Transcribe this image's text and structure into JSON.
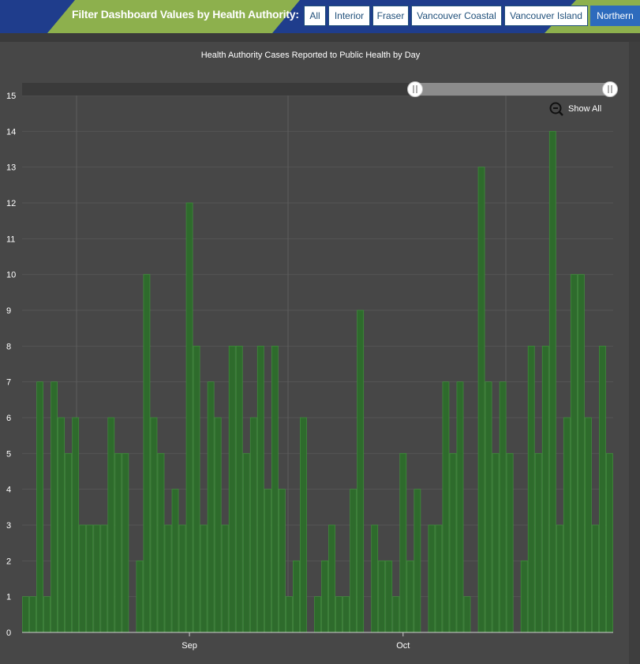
{
  "header": {
    "filter_label": "Filter Dashboard Values by Health Authority:",
    "buttons": [
      "All",
      "Interior",
      "Fraser",
      "Vancouver Coastal",
      "Vancouver Island",
      "Northern"
    ],
    "active_button": "Northern"
  },
  "chart_controls": {
    "show_all_label": "Show All"
  },
  "colors": {
    "header_bg": "#1f3d8c",
    "accent_green": "#8db04d",
    "active_button_bg": "#2d6bbd",
    "bar_fill": "#2e6b2c",
    "bar_stroke": "#3f8a3b",
    "background": "#474747"
  },
  "chart_data": {
    "type": "bar",
    "title": "Health Authority Cases Reported to Public Health by Day",
    "xlabel": "",
    "ylabel": "",
    "ylim": [
      0,
      15
    ],
    "yticks": [
      0,
      1,
      2,
      3,
      4,
      5,
      6,
      7,
      8,
      9,
      10,
      11,
      12,
      13,
      14,
      15
    ],
    "x_tick_labels": [
      {
        "label": "Sep",
        "index": 23
      },
      {
        "label": "Oct",
        "index": 53
      }
    ],
    "values": [
      1,
      1,
      7,
      1,
      7,
      6,
      5,
      6,
      3,
      3,
      3,
      3,
      6,
      5,
      5,
      0,
      2,
      10,
      6,
      5,
      3,
      4,
      3,
      12,
      8,
      3,
      7,
      6,
      3,
      8,
      8,
      5,
      6,
      8,
      4,
      8,
      4,
      1,
      2,
      6,
      0,
      1,
      2,
      3,
      1,
      1,
      4,
      9,
      0,
      3,
      2,
      2,
      1,
      5,
      2,
      4,
      0,
      3,
      3,
      7,
      5,
      7,
      1,
      0,
      13,
      7,
      5,
      7,
      5,
      0,
      2,
      8,
      5,
      8,
      14,
      3,
      6,
      10,
      10,
      6,
      3,
      8,
      5
    ]
  }
}
